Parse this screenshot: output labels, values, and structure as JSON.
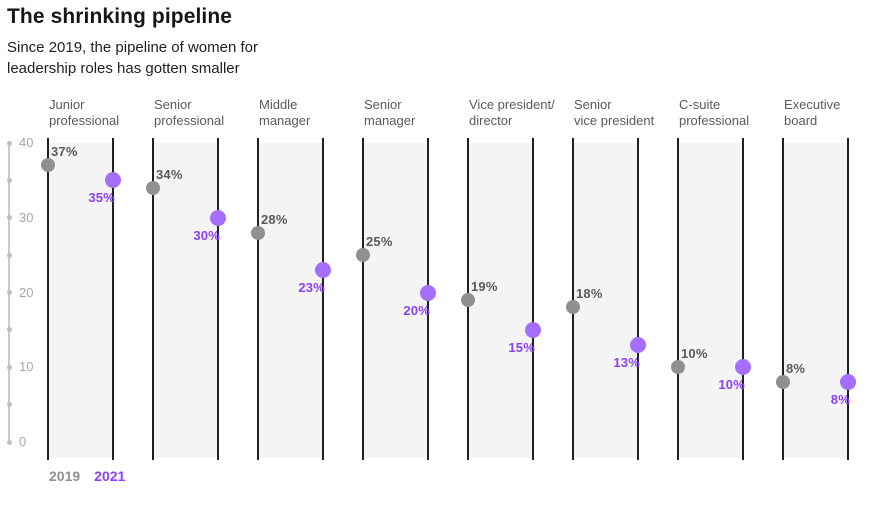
{
  "header": {
    "title": "The shrinking pipeline",
    "subtitle": "Since 2019, the pipeline of women for\nleadership roles has gotten smaller"
  },
  "legend": {
    "series_2019": "2019",
    "series_2021": "2021"
  },
  "y_axis": {
    "min": 0,
    "max": 40,
    "ticks": [
      0,
      5,
      10,
      15,
      20,
      25,
      30,
      35,
      40
    ],
    "labeled_ticks": [
      0,
      10,
      20,
      30,
      40
    ]
  },
  "chart_data": {
    "type": "scatter",
    "subtype": "slope-dot-comparison",
    "title": "The shrinking pipeline",
    "subtitle": "Since 2019, the pipeline of women for leadership roles has gotten smaller",
    "categories": [
      "Junior\nprofessional",
      "Senior\nprofessional",
      "Middle\nmanager",
      "Senior\nmanager",
      "Vice president/\ndirector",
      "Senior\nvice president",
      "C-suite\nprofessional",
      "Executive\nboard"
    ],
    "series": [
      {
        "name": "2019",
        "values": [
          37,
          34,
          28,
          25,
          19,
          18,
          10,
          8
        ]
      },
      {
        "name": "2021",
        "values": [
          35,
          30,
          23,
          20,
          15,
          13,
          10,
          8
        ]
      }
    ],
    "value_suffix": "%",
    "ylim": [
      0,
      40
    ],
    "grid": false,
    "legend_position": "bottom-left"
  },
  "colors": {
    "title_text": "#161616",
    "subtitle_text": "#1f1f1f",
    "category_header_text": "#565b61",
    "band_fill": "#f4f4f4",
    "column_line": "#1e2226",
    "axis_line": "#c9c9c9",
    "axis_dot": "#bdbdbd",
    "axis_label_text": "#a6a6a6",
    "connector": "#dedede",
    "dot_2019": "#909090",
    "dot_2021": "#a56eff",
    "label_2019": "#5a5a5a",
    "label_2021": "#8a3ffc",
    "legend_2019": "#8f8f8f",
    "legend_2021": "#8a3ffc"
  }
}
